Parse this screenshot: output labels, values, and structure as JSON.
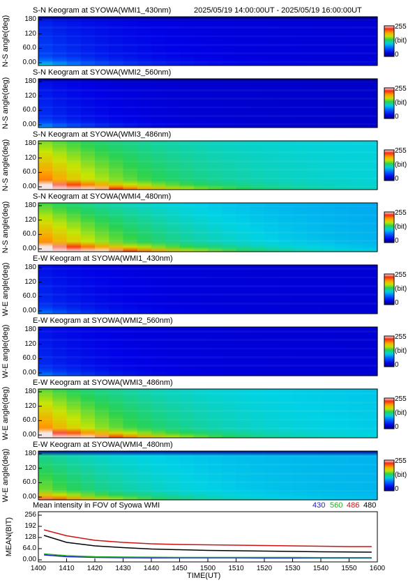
{
  "header": {
    "date_range": "2025/05/19 14:00:00UT - 2025/05/19 16:00:00UT"
  },
  "colorbar": {
    "max_label": "255",
    "unit_label": "(bit)",
    "min_label": "0"
  },
  "keograms": [
    {
      "title": "S-N Keogram at SYOWA(WMI1_430nm)",
      "ylabel": "N-S angle(deg)",
      "yticks": [
        "180",
        "120",
        "60.0",
        "0.00"
      ],
      "base": 0.1,
      "horizon_boost": 0.15,
      "fade": 0.25,
      "top_dark": true,
      "streaks": []
    },
    {
      "title": "S-N Keogram at SYOWA(WMI2_560nm)",
      "ylabel": "N-S angle(deg)",
      "yticks": [
        "180",
        "120",
        "60.0",
        "0.00"
      ],
      "base": 0.09,
      "horizon_boost": 0.12,
      "fade": 0.2,
      "top_dark": true,
      "streaks": []
    },
    {
      "title": "S-N Keogram at SYOWA(WMI3_486nm)",
      "ylabel": "N-S angle(deg)",
      "yticks": [
        "180",
        "120",
        "60.0",
        "0.00"
      ],
      "base": 0.42,
      "horizon_boost": 0.45,
      "fade": 0.3,
      "top_dark": false,
      "streaks": []
    },
    {
      "title": "S-N Keogram at SYOWA(WMI4_480nm)",
      "ylabel": "N-S angle(deg)",
      "yticks": [
        "180",
        "120",
        "60.0",
        "0.00"
      ],
      "base": 0.36,
      "horizon_boost": 0.5,
      "fade": 0.35,
      "top_dark": false,
      "streaks": []
    },
    {
      "title": "E-W Keogram at SYOWA(WMI1_430nm)",
      "ylabel": "W-E angle(deg)",
      "yticks": [
        "180",
        "120",
        "60.0",
        "0.00"
      ],
      "base": 0.1,
      "horizon_boost": 0.1,
      "fade": 0.2,
      "top_dark": false,
      "streaks": []
    },
    {
      "title": "E-W Keogram at SYOWA(WMI2_560nm)",
      "ylabel": "W-E angle(deg)",
      "yticks": [
        "180",
        "120",
        "60.0",
        "0.00"
      ],
      "base": 0.1,
      "horizon_boost": 0.1,
      "fade": 0.2,
      "top_dark": false,
      "streaks": []
    },
    {
      "title": "E-W Keogram at SYOWA(WMI3_486nm)",
      "ylabel": "W-E angle(deg)",
      "yticks": [
        "180",
        "120",
        "60.0",
        "0.00"
      ],
      "base": 0.4,
      "horizon_boost": 0.45,
      "fade": 0.3,
      "top_dark": false,
      "streaks": []
    },
    {
      "title": "E-W Keogram at SYOWA(WMI4_480nm)",
      "ylabel": "W-E angle(deg)",
      "yticks": [
        "180",
        "120",
        "60.0",
        "0.00"
      ],
      "base": 0.38,
      "horizon_boost": 0.25,
      "fade": 0.3,
      "top_dark": true,
      "streaks": []
    }
  ],
  "chart_data": {
    "type": "line",
    "title": "Mean intensity in FOV of Syowa WMI",
    "xlabel": "TIME(UT)",
    "ylabel": "MEAN(BIT)",
    "x_ticks": [
      "1400",
      "1410",
      "1420",
      "1430",
      "1440",
      "1450",
      "1500",
      "1510",
      "1520",
      "1530",
      "1540",
      "1550",
      "1600"
    ],
    "y_ticks": [
      "256",
      "192",
      "128",
      "64.0",
      "0.00"
    ],
    "xlim": [
      0,
      120
    ],
    "ylim": [
      0,
      256
    ],
    "x_minutes": [
      2,
      10,
      20,
      30,
      40,
      50,
      60,
      70,
      80,
      90,
      100,
      110,
      118
    ],
    "series": [
      {
        "name": "430",
        "color": "#1a1ad6",
        "values": [
          28,
          18,
          14,
          12,
          11,
          11,
          11,
          11,
          10,
          10,
          10,
          10,
          10
        ]
      },
      {
        "name": "560",
        "color": "#22b022",
        "values": [
          34,
          24,
          18,
          16,
          15,
          14,
          14,
          14,
          14,
          14,
          13,
          13,
          13
        ]
      },
      {
        "name": "486",
        "color": "#d01010",
        "values": [
          172,
          138,
          112,
          100,
          92,
          88,
          86,
          84,
          82,
          80,
          78,
          76,
          76
        ]
      },
      {
        "name": "480",
        "color": "#000000",
        "values": [
          140,
          100,
          80,
          70,
          62,
          58,
          54,
          52,
          50,
          48,
          46,
          45,
          44
        ]
      }
    ]
  }
}
